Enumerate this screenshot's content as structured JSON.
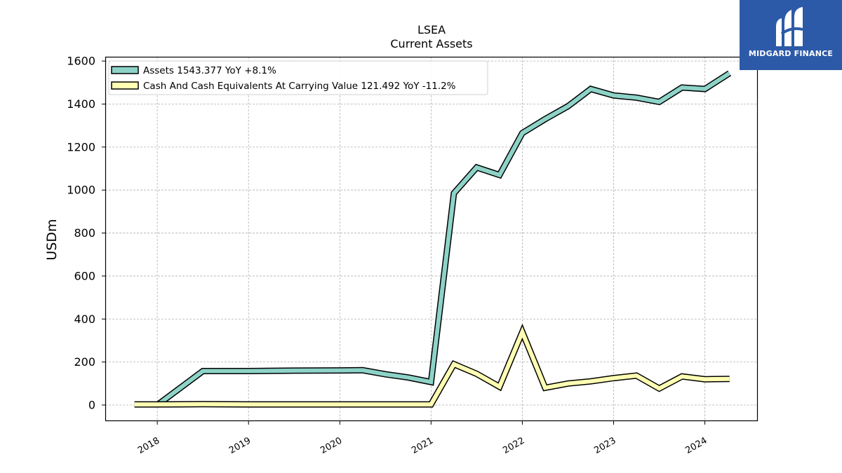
{
  "chart_data": {
    "type": "line",
    "title": "LSEA",
    "subtitle": "Current  Assets",
    "ylabel": "USDm",
    "xlabel": "",
    "ylim": [
      -75,
      1620
    ],
    "xlim": [
      2017.43,
      2024.58
    ],
    "yticks": [
      0,
      200,
      400,
      600,
      800,
      1000,
      1200,
      1400,
      1600
    ],
    "xticks": [
      {
        "value": 2018,
        "label": "2018"
      },
      {
        "value": 2019,
        "label": "2019"
      },
      {
        "value": 2020,
        "label": "2020"
      },
      {
        "value": 2021,
        "label": "2021"
      },
      {
        "value": 2022,
        "label": "2022"
      },
      {
        "value": 2023,
        "label": "2023"
      },
      {
        "value": 2024,
        "label": "2024"
      }
    ],
    "grid": true,
    "legend_position": "top-left",
    "series": [
      {
        "name": "Assets",
        "legend": "Assets  1543.377 YoY +8.1%",
        "color": "#8dd3c7",
        "points": [
          [
            2018.0,
            0
          ],
          [
            2018.5,
            158
          ],
          [
            2019.0,
            158
          ],
          [
            2019.5,
            160
          ],
          [
            2020.0,
            161
          ],
          [
            2020.25,
            162
          ],
          [
            2020.5,
            143
          ],
          [
            2020.75,
            128
          ],
          [
            2021.0,
            107
          ],
          [
            2021.25,
            985
          ],
          [
            2021.5,
            1105
          ],
          [
            2021.75,
            1070
          ],
          [
            2022.0,
            1265
          ],
          [
            2022.25,
            1330
          ],
          [
            2022.5,
            1390
          ],
          [
            2022.75,
            1470
          ],
          [
            2023.0,
            1440
          ],
          [
            2023.25,
            1430
          ],
          [
            2023.5,
            1410
          ],
          [
            2023.75,
            1477
          ],
          [
            2024.0,
            1470
          ],
          [
            2024.27,
            1543.377
          ]
        ]
      },
      {
        "name": "Cash And Cash Equivalents At Carrying Value",
        "legend": "Cash And Cash Equivalents At Carrying Value  121.492 YoY -11.2%",
        "color": "#ffffb3",
        "points": [
          [
            2017.75,
            3
          ],
          [
            2018.0,
            3
          ],
          [
            2018.5,
            4
          ],
          [
            2019.0,
            3
          ],
          [
            2020.0,
            3
          ],
          [
            2020.5,
            3
          ],
          [
            2021.0,
            3
          ],
          [
            2021.25,
            190
          ],
          [
            2021.5,
            145
          ],
          [
            2021.75,
            85
          ],
          [
            2022.0,
            340
          ],
          [
            2022.25,
            80
          ],
          [
            2022.5,
            100
          ],
          [
            2022.75,
            110
          ],
          [
            2023.0,
            125
          ],
          [
            2023.25,
            137
          ],
          [
            2023.5,
            77
          ],
          [
            2023.75,
            133
          ],
          [
            2024.0,
            120
          ],
          [
            2024.27,
            121.492
          ]
        ]
      }
    ]
  },
  "logo": {
    "text": "MIDGARD FINANCE",
    "color": "#2d5aa8"
  }
}
